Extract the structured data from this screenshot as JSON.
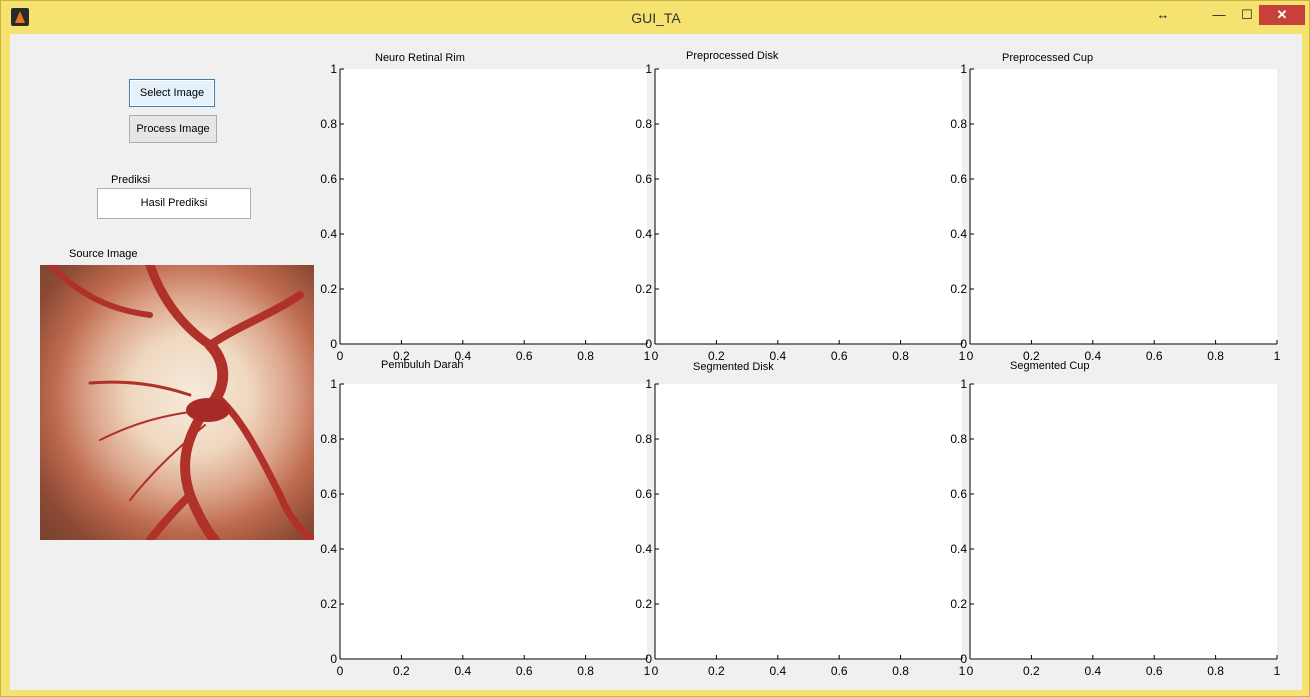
{
  "window": {
    "title": "GUI_TA",
    "controls": {
      "resize": "↔",
      "minimize": "—",
      "maximize": "☐",
      "close": "✕"
    }
  },
  "buttons": {
    "select_image": "Select Image",
    "process_image": "Process Image"
  },
  "prediction": {
    "label": "Prediksi",
    "value": "Hasil Prediksi"
  },
  "source_image": {
    "label": "Source Image"
  },
  "axes": [
    {
      "id": "neuro-retinal-rim",
      "title": "Neuro Retinal Rim"
    },
    {
      "id": "preprocessed-disk",
      "title": "Preprocessed Disk"
    },
    {
      "id": "preprocessed-cup",
      "title": "Preprocessed Cup"
    },
    {
      "id": "pembuluh-darah",
      "title": "Pembuluh Darah"
    },
    {
      "id": "segmented-disk",
      "title": "Segmented Disk"
    },
    {
      "id": "segmented-cup",
      "title": "Segmented Cup"
    }
  ],
  "chart_data": {
    "type": "line",
    "xlim": [
      0,
      1
    ],
    "ylim": [
      0,
      1
    ],
    "x_ticks": [
      "0",
      "0.2",
      "0.4",
      "0.6",
      "0.8",
      "1"
    ],
    "y_ticks": [
      "0",
      "0.2",
      "0.4",
      "0.6",
      "0.8",
      "1"
    ],
    "series": []
  },
  "colors": {
    "frame": "#f6e271",
    "close": "#c7413a",
    "client_bg": "#f0f0f0"
  }
}
